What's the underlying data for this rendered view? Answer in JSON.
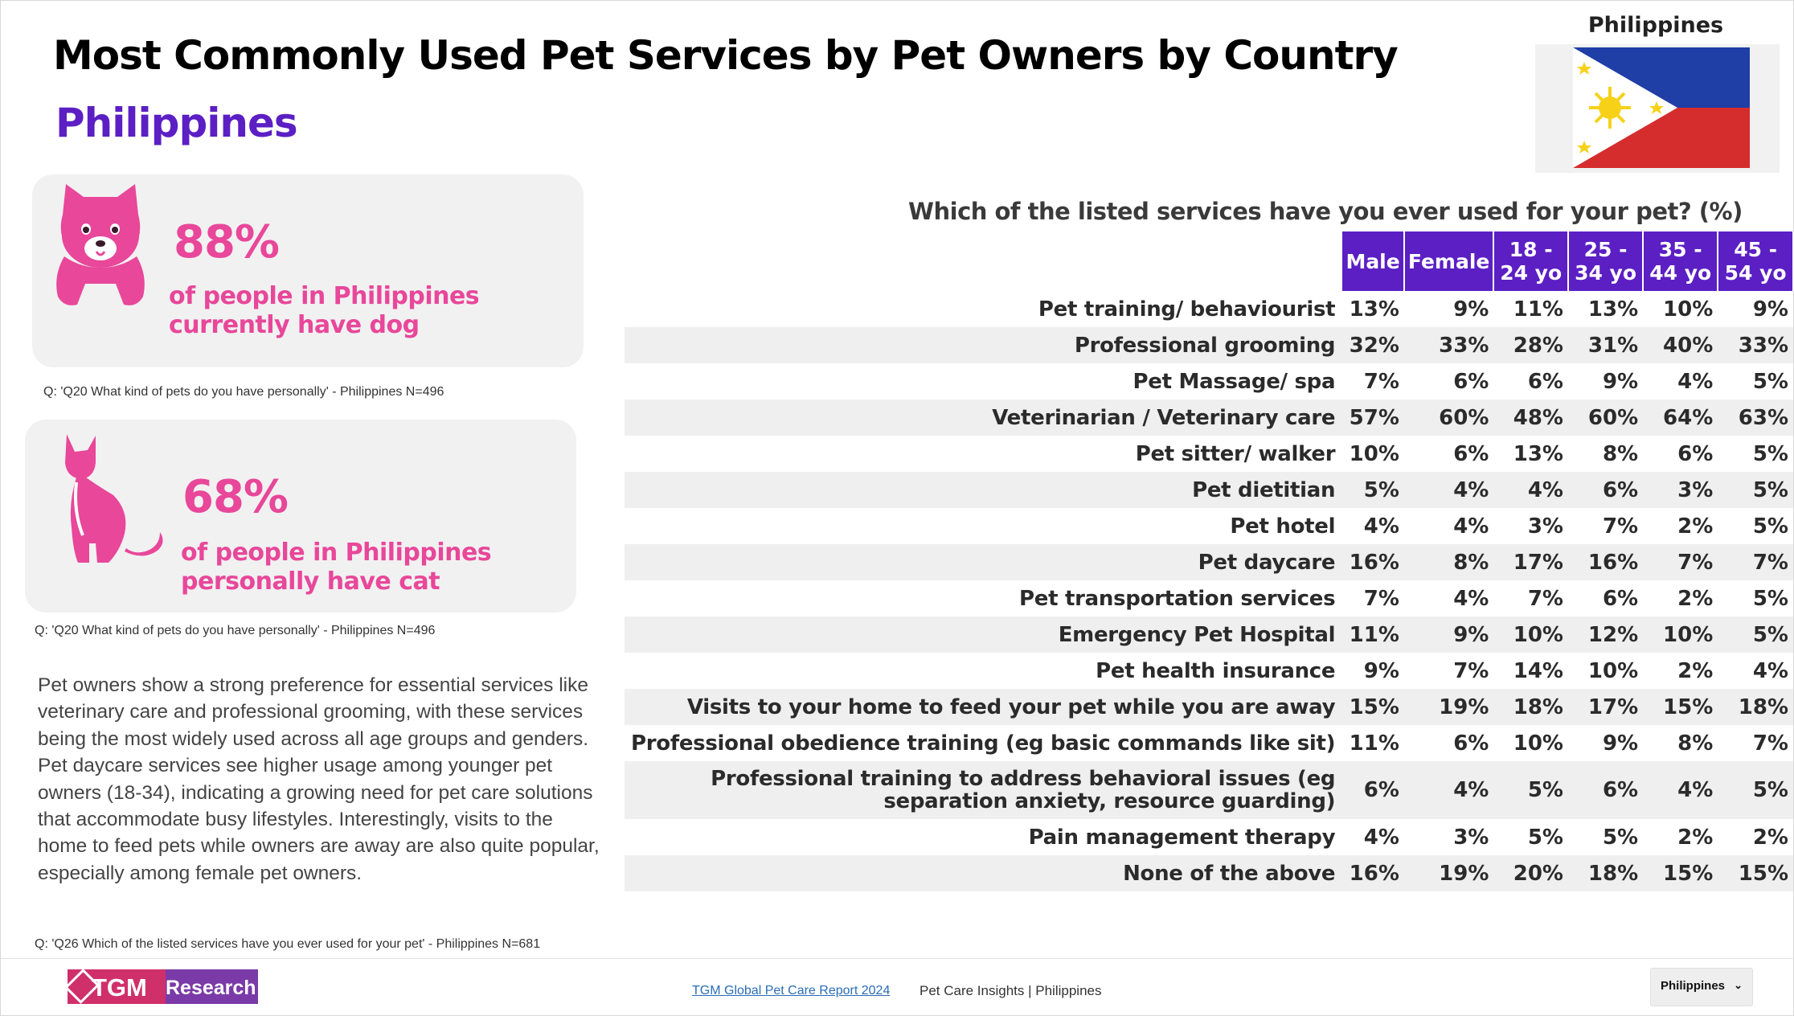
{
  "page": {
    "title": "Most Commonly Used Pet Services by Pet Owners by Country",
    "country": "Philippines",
    "flag_label": "Philippines"
  },
  "stats": [
    {
      "pet": "dog",
      "icon": "dog-icon",
      "percent": "88%",
      "description": "of people in Philippines currently have dog",
      "source": "Q: 'Q20 What kind of pets do you have personally' - Philippines N=496"
    },
    {
      "pet": "cat",
      "icon": "cat-icon",
      "percent": "68%",
      "description": "of people in Philippines personally have cat",
      "source": "Q: 'Q20 What kind of pets do you have personally' - Philippines N=496"
    }
  ],
  "summary": "Pet owners show a strong preference for essential services like veterinary care and professional grooming, with these services being the most widely used across all age groups and genders. Pet daycare services see higher usage among younger pet owners (18-34), indicating a growing need for pet care solutions that accommodate busy lifestyles. Interestingly, visits to the home to feed pets while owners are away are also quite popular, especially among female pet owners.",
  "summary_source": "Q: 'Q26 Which of the listed services have you ever used for your pet' - Philippines N=681",
  "table": {
    "question": "Which of the listed services have you ever used for your pet? (%)",
    "columns": [
      "Male",
      "Female",
      "18 - 24 yo",
      "25 - 34 yo",
      "35 - 44 yo",
      "45 - 54 yo"
    ],
    "rows": [
      {
        "label": "Pet training/ behaviourist",
        "values": [
          "13%",
          "9%",
          "11%",
          "13%",
          "10%",
          "9%"
        ]
      },
      {
        "label": "Professional grooming",
        "values": [
          "32%",
          "33%",
          "28%",
          "31%",
          "40%",
          "33%"
        ]
      },
      {
        "label": "Pet Massage/ spa",
        "values": [
          "7%",
          "6%",
          "6%",
          "9%",
          "4%",
          "5%"
        ]
      },
      {
        "label": "Veterinarian / Veterinary care",
        "values": [
          "57%",
          "60%",
          "48%",
          "60%",
          "64%",
          "63%"
        ]
      },
      {
        "label": "Pet sitter/ walker",
        "values": [
          "10%",
          "6%",
          "13%",
          "8%",
          "6%",
          "5%"
        ]
      },
      {
        "label": "Pet dietitian",
        "values": [
          "5%",
          "4%",
          "4%",
          "6%",
          "3%",
          "5%"
        ]
      },
      {
        "label": "Pet hotel",
        "values": [
          "4%",
          "4%",
          "3%",
          "7%",
          "2%",
          "5%"
        ]
      },
      {
        "label": "Pet daycare",
        "values": [
          "16%",
          "8%",
          "17%",
          "16%",
          "7%",
          "7%"
        ]
      },
      {
        "label": "Pet transportation services",
        "values": [
          "7%",
          "4%",
          "7%",
          "6%",
          "2%",
          "5%"
        ]
      },
      {
        "label": "Emergency Pet Hospital",
        "values": [
          "11%",
          "9%",
          "10%",
          "12%",
          "10%",
          "5%"
        ]
      },
      {
        "label": "Pet health insurance",
        "values": [
          "9%",
          "7%",
          "14%",
          "10%",
          "2%",
          "4%"
        ]
      },
      {
        "label": "Visits to your home to feed your pet while you are away",
        "values": [
          "15%",
          "19%",
          "18%",
          "17%",
          "15%",
          "18%"
        ]
      },
      {
        "label": "Professional obedience training (eg basic commands like sit)",
        "values": [
          "11%",
          "6%",
          "10%",
          "9%",
          "8%",
          "7%"
        ]
      },
      {
        "label": "Professional training to address behavioral issues (eg separation anxiety, resource guarding)",
        "values": [
          "6%",
          "4%",
          "5%",
          "6%",
          "4%",
          "5%"
        ]
      },
      {
        "label": "Pain management therapy",
        "values": [
          "4%",
          "3%",
          "5%",
          "5%",
          "2%",
          "2%"
        ]
      },
      {
        "label": "None of the above",
        "values": [
          "16%",
          "19%",
          "20%",
          "18%",
          "15%",
          "15%"
        ]
      }
    ]
  },
  "footer": {
    "logo_text_1": "TGM",
    "logo_text_2": "Research",
    "report_link": "TGM Global Pet Care Report 2024",
    "caption": "Pet Care Insights | Philippines",
    "country_select": "Philippines"
  },
  "colors": {
    "accent_purple": "#5b1fc4",
    "pink": "#e8479a",
    "flag_blue": "#1f3fa6",
    "flag_red": "#d52d2d",
    "flag_yellow": "#f7d117"
  }
}
